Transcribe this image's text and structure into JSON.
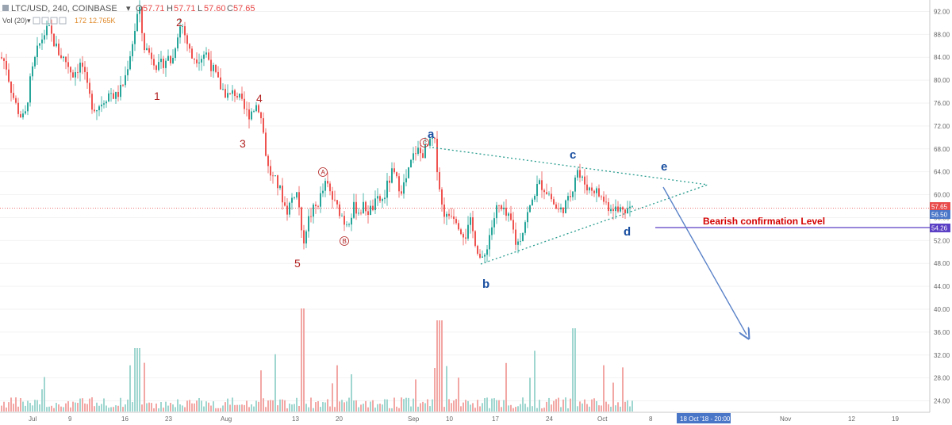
{
  "header": {
    "symbol": "LTC/USD, 240, COINBASE",
    "ohlc": [
      {
        "k": "O",
        "v": "57.71"
      },
      {
        "k": "H",
        "v": "57.71"
      },
      {
        "k": "L",
        "v": "57.60"
      },
      {
        "k": "C",
        "v": "57.65"
      }
    ],
    "vol_label": "Vol (20)",
    "vol_values": [
      "172",
      "12.765K"
    ]
  },
  "chart_data": {
    "type": "candlestick",
    "title": "",
    "x_tick_labels": [
      "Jul",
      "9",
      "16",
      "23",
      "Aug",
      "13",
      "20",
      "Sep",
      "10",
      "17",
      "24",
      "Oct",
      "8",
      "Nov",
      "12",
      "19"
    ],
    "y_tick_labels": [
      "24.00",
      "28.00",
      "32.00",
      "36.00",
      "40.00",
      "44.00",
      "48.00",
      "52.00",
      "56.00",
      "60.00",
      "64.00",
      "68.00",
      "72.00",
      "76.00",
      "80.00",
      "84.00",
      "88.00",
      "92.00"
    ],
    "ylim": [
      22,
      94
    ],
    "price_path": [
      {
        "x": 0,
        "p": 84
      },
      {
        "x": 6,
        "p": 83
      },
      {
        "x": 12,
        "p": 79
      },
      {
        "x": 18,
        "p": 76
      },
      {
        "x": 24,
        "p": 74
      },
      {
        "x": 30,
        "p": 73
      },
      {
        "x": 36,
        "p": 79
      },
      {
        "x": 42,
        "p": 83
      },
      {
        "x": 48,
        "p": 86
      },
      {
        "x": 54,
        "p": 88
      },
      {
        "x": 60,
        "p": 89
      },
      {
        "x": 66,
        "p": 87
      },
      {
        "x": 72,
        "p": 85
      },
      {
        "x": 78,
        "p": 84
      },
      {
        "x": 84,
        "p": 83
      },
      {
        "x": 90,
        "p": 81
      },
      {
        "x": 96,
        "p": 82
      },
      {
        "x": 102,
        "p": 83
      },
      {
        "x": 108,
        "p": 79
      },
      {
        "x": 114,
        "p": 76
      },
      {
        "x": 120,
        "p": 75
      },
      {
        "x": 126,
        "p": 76
      },
      {
        "x": 132,
        "p": 77
      },
      {
        "x": 138,
        "p": 78
      },
      {
        "x": 144,
        "p": 77
      },
      {
        "x": 150,
        "p": 78
      },
      {
        "x": 156,
        "p": 80
      },
      {
        "x": 162,
        "p": 84
      },
      {
        "x": 168,
        "p": 88
      },
      {
        "x": 174,
        "p": 93
      },
      {
        "x": 180,
        "p": 86
      },
      {
        "x": 186,
        "p": 85
      },
      {
        "x": 192,
        "p": 84
      },
      {
        "x": 198,
        "p": 82
      },
      {
        "x": 204,
        "p": 83
      },
      {
        "x": 210,
        "p": 84
      },
      {
        "x": 216,
        "p": 83
      },
      {
        "x": 222,
        "p": 88
      },
      {
        "x": 228,
        "p": 90
      },
      {
        "x": 234,
        "p": 87
      },
      {
        "x": 240,
        "p": 84
      },
      {
        "x": 246,
        "p": 84
      },
      {
        "x": 252,
        "p": 84
      },
      {
        "x": 258,
        "p": 85
      },
      {
        "x": 264,
        "p": 83
      },
      {
        "x": 270,
        "p": 81
      },
      {
        "x": 276,
        "p": 79
      },
      {
        "x": 282,
        "p": 78
      },
      {
        "x": 288,
        "p": 77
      },
      {
        "x": 294,
        "p": 78
      },
      {
        "x": 300,
        "p": 77
      },
      {
        "x": 306,
        "p": 75
      },
      {
        "x": 312,
        "p": 74
      },
      {
        "x": 318,
        "p": 75
      },
      {
        "x": 324,
        "p": 76
      },
      {
        "x": 330,
        "p": 72
      },
      {
        "x": 336,
        "p": 65
      },
      {
        "x": 342,
        "p": 63
      },
      {
        "x": 348,
        "p": 62
      },
      {
        "x": 354,
        "p": 60
      },
      {
        "x": 360,
        "p": 57
      },
      {
        "x": 366,
        "p": 59
      },
      {
        "x": 372,
        "p": 61
      },
      {
        "x": 376,
        "p": 58
      },
      {
        "x": 380,
        "p": 51
      },
      {
        "x": 386,
        "p": 55
      },
      {
        "x": 392,
        "p": 57
      },
      {
        "x": 398,
        "p": 58
      },
      {
        "x": 404,
        "p": 60
      },
      {
        "x": 410,
        "p": 62
      },
      {
        "x": 416,
        "p": 60
      },
      {
        "x": 422,
        "p": 58
      },
      {
        "x": 428,
        "p": 57
      },
      {
        "x": 434,
        "p": 55
      },
      {
        "x": 440,
        "p": 56
      },
      {
        "x": 446,
        "p": 58
      },
      {
        "x": 452,
        "p": 57
      },
      {
        "x": 458,
        "p": 58
      },
      {
        "x": 464,
        "p": 57
      },
      {
        "x": 470,
        "p": 58
      },
      {
        "x": 476,
        "p": 59
      },
      {
        "x": 482,
        "p": 59
      },
      {
        "x": 488,
        "p": 62
      },
      {
        "x": 494,
        "p": 64
      },
      {
        "x": 500,
        "p": 62
      },
      {
        "x": 506,
        "p": 61
      },
      {
        "x": 512,
        "p": 63
      },
      {
        "x": 518,
        "p": 66
      },
      {
        "x": 524,
        "p": 68
      },
      {
        "x": 530,
        "p": 67
      },
      {
        "x": 536,
        "p": 68
      },
      {
        "x": 542,
        "p": 69
      },
      {
        "x": 546,
        "p": 70
      },
      {
        "x": 550,
        "p": 65
      },
      {
        "x": 556,
        "p": 58
      },
      {
        "x": 562,
        "p": 56
      },
      {
        "x": 568,
        "p": 57
      },
      {
        "x": 574,
        "p": 56
      },
      {
        "x": 580,
        "p": 54
      },
      {
        "x": 586,
        "p": 53
      },
      {
        "x": 592,
        "p": 55
      },
      {
        "x": 598,
        "p": 52
      },
      {
        "x": 604,
        "p": 49
      },
      {
        "x": 608,
        "p": 48
      },
      {
        "x": 614,
        "p": 52
      },
      {
        "x": 620,
        "p": 55
      },
      {
        "x": 626,
        "p": 58
      },
      {
        "x": 632,
        "p": 57
      },
      {
        "x": 638,
        "p": 56
      },
      {
        "x": 644,
        "p": 55
      },
      {
        "x": 650,
        "p": 51
      },
      {
        "x": 656,
        "p": 53
      },
      {
        "x": 662,
        "p": 56
      },
      {
        "x": 668,
        "p": 58
      },
      {
        "x": 674,
        "p": 61
      },
      {
        "x": 680,
        "p": 62
      },
      {
        "x": 686,
        "p": 61
      },
      {
        "x": 692,
        "p": 60
      },
      {
        "x": 698,
        "p": 58
      },
      {
        "x": 704,
        "p": 57
      },
      {
        "x": 710,
        "p": 58
      },
      {
        "x": 716,
        "p": 59
      },
      {
        "x": 722,
        "p": 62
      },
      {
        "x": 726,
        "p": 65
      },
      {
        "x": 730,
        "p": 63
      },
      {
        "x": 736,
        "p": 62
      },
      {
        "x": 742,
        "p": 61
      },
      {
        "x": 748,
        "p": 61
      },
      {
        "x": 754,
        "p": 60
      },
      {
        "x": 760,
        "p": 59
      },
      {
        "x": 766,
        "p": 58
      },
      {
        "x": 772,
        "p": 58
      },
      {
        "x": 778,
        "p": 57
      },
      {
        "x": 784,
        "p": 58
      },
      {
        "x": 790,
        "p": 57.6
      },
      {
        "x": 796,
        "p": 57.65
      }
    ],
    "current_price_line": 57.65,
    "price_tags": [
      {
        "label": "57.65",
        "price": 57.65,
        "color": "#e84a4a"
      },
      {
        "label": "56.50",
        "price": 56.5,
        "color": "#4a76c8"
      },
      {
        "label": "54.26",
        "price": 54.26,
        "color": "#5b3fc4"
      }
    ],
    "time_tag": "18 Oct '18 - 20:00",
    "wave_labels_red": [
      "1",
      "2",
      "3",
      "4",
      "5"
    ],
    "wave_labels_circled": [
      "A",
      "B",
      "C"
    ],
    "wave_labels_blue": [
      "a",
      "b",
      "c",
      "d",
      "e"
    ],
    "annotation": "Bearish confirmation Level",
    "bearish_level": 54.26,
    "colors": {
      "up": "#26a69a",
      "down": "#ef5350",
      "wave_red": "#b22222",
      "wave_blue": "#1a4fa0",
      "triangle": "#2a9d8f",
      "level_line": "#5b3fc4",
      "arrow": "#5a82c8",
      "annotation": "#d40000"
    }
  }
}
